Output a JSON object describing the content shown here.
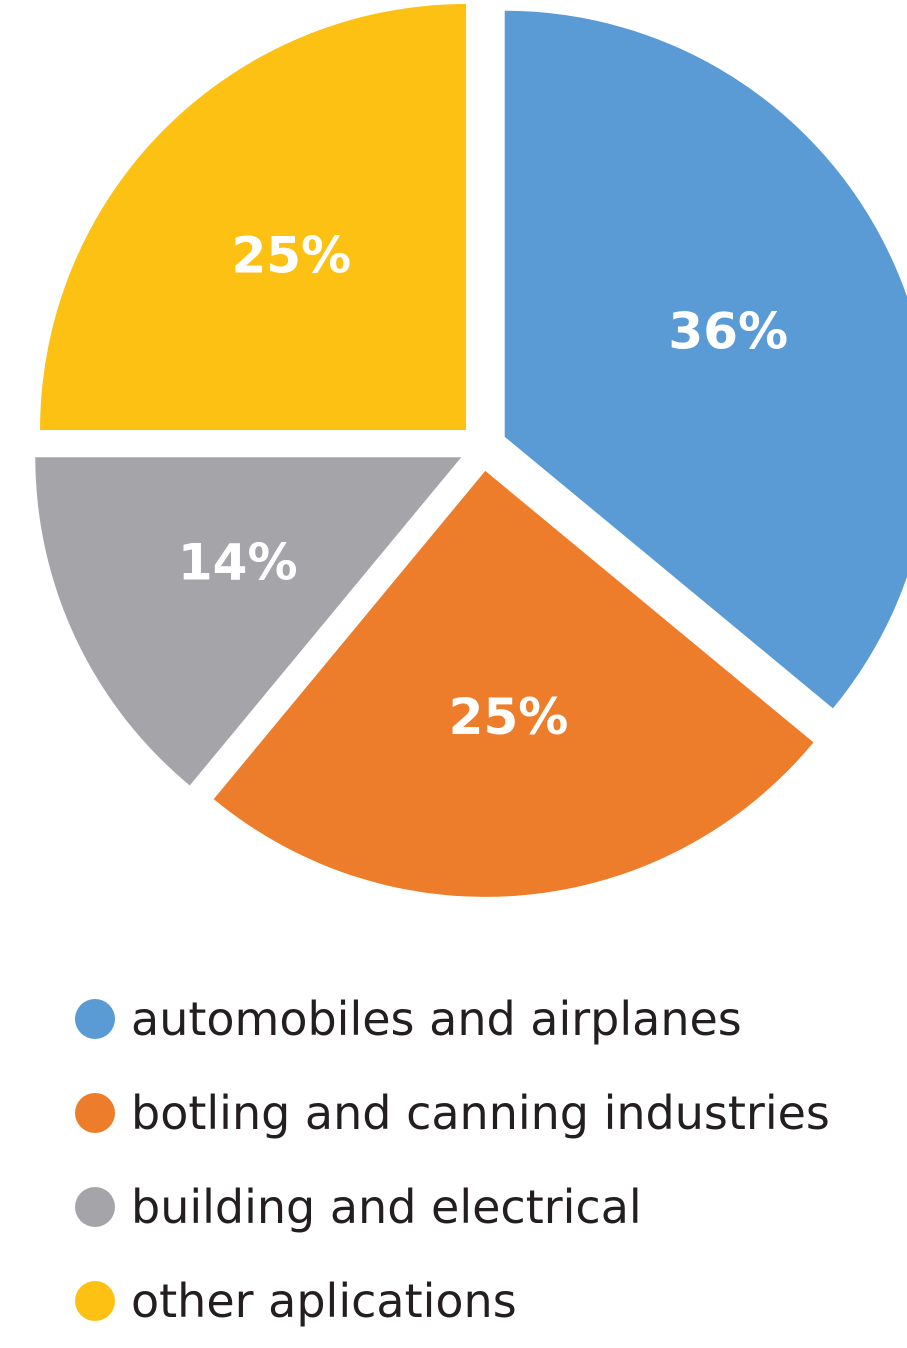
{
  "chart_data": {
    "type": "pie",
    "categories": [
      "automobiles and airplanes",
      "botling and canning industries",
      "building and electrical",
      "other aplications"
    ],
    "values": [
      36,
      25,
      14,
      25
    ],
    "labels": [
      "36%",
      "25%",
      "14%",
      "25%"
    ],
    "colors": [
      "#5b9bd5",
      "#ed7d2b",
      "#a5a5a9",
      "#fdc113"
    ],
    "legend_position": "bottom",
    "title": ""
  }
}
